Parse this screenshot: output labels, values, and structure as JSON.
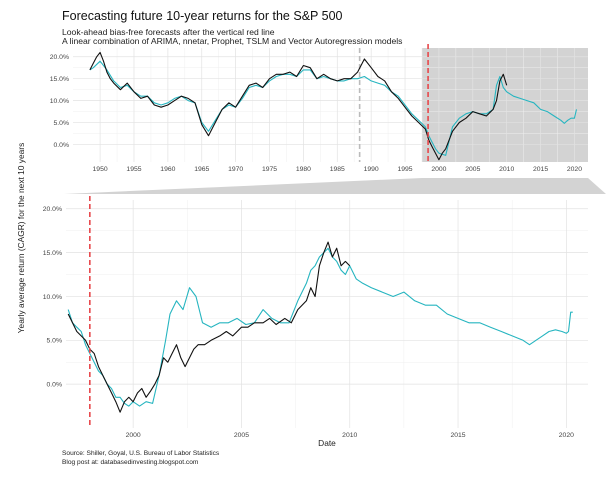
{
  "title": "Forecasting future 10-year returns for the S&P 500",
  "subtitle_1": "Look-ahead bias-free forecasts after the vertical red line",
  "subtitle_2": "A linear combination of ARIMA, nnetar, Prophet, TSLM and Vector Autoregression models",
  "caption_1": "Source: Shiller, Goyal, U.S. Bureau of Labor Statistics",
  "caption_2": "Blog post at: databasedinvesting.blogspot.com",
  "colors": {
    "actual": "#111111",
    "forecast": "#26b5c0",
    "redline": "#e8474b",
    "grayline": "#bbbbbb",
    "shade": "#d3d3d3"
  },
  "chart_data": [
    {
      "type": "line",
      "panel": "overview",
      "xlim": [
        1946,
        2022
      ],
      "ylim": [
        -4,
        22
      ],
      "y_ticks": [
        0,
        5,
        10,
        15,
        20
      ],
      "y_tick_labels": [
        "0.0%",
        "5.0%",
        "10.0%",
        "15.0%",
        "20.0%"
      ],
      "x_ticks": [
        1950,
        1955,
        1960,
        1965,
        1970,
        1975,
        1980,
        1985,
        1990,
        1995,
        2000,
        2005,
        2010,
        2015,
        2020
      ],
      "x_tick_labels": [
        "1950",
        "1955",
        "1960",
        "1965",
        "1970",
        "1975",
        "1980",
        "1985",
        "1990",
        "1995",
        "2000",
        "2005",
        "2010",
        "2015",
        "2020"
      ],
      "vline_gray_x": 1988.3,
      "vline_red_x": 1998.4,
      "shaded_x": [
        1997.5,
        2022
      ],
      "grid": true,
      "series": [
        {
          "role": "actual",
          "x": [
            1948.5,
            1949,
            1949.5,
            1950,
            1950.5,
            1951,
            1951.5,
            1952,
            1953,
            1954,
            1955,
            1956,
            1957,
            1958,
            1959,
            1960,
            1961,
            1962,
            1963,
            1964,
            1965,
            1966,
            1967,
            1968,
            1969,
            1970,
            1971,
            1972,
            1973,
            1974,
            1975,
            1976,
            1977,
            1978,
            1979,
            1980,
            1981,
            1982,
            1983,
            1984,
            1985,
            1986,
            1987,
            1988,
            1989,
            1990,
            1991,
            1992,
            1993,
            1994,
            1995,
            1996,
            1997,
            1998,
            1998.5,
            1999,
            1999.5,
            2000,
            2000.5,
            2001,
            2002,
            2003,
            2004,
            2005,
            2006,
            2007,
            2008,
            2008.5,
            2009,
            2009.5,
            2010
          ],
          "y": [
            17,
            18.5,
            20,
            21,
            19,
            16.5,
            15,
            14,
            12.5,
            14,
            12,
            10.5,
            11,
            9,
            8.5,
            9,
            10,
            11,
            10.5,
            9.5,
            4.5,
            2,
            5,
            8,
            9.5,
            8.5,
            11,
            13.5,
            14,
            13,
            15,
            16,
            16,
            16.5,
            15.5,
            18,
            17.5,
            15,
            16,
            15,
            14.5,
            15,
            15,
            16.5,
            19.5,
            17.5,
            15.5,
            14.5,
            12,
            10.5,
            8.5,
            6.5,
            5,
            3.5,
            1,
            -0.5,
            -2,
            -3.5,
            -2,
            -1,
            3,
            5,
            6,
            7.5,
            7,
            6.5,
            8,
            10,
            14.5,
            16,
            13.5
          ]
        },
        {
          "role": "forecast",
          "x": [
            1948.5,
            1949,
            1950,
            1951,
            1952,
            1953,
            1954,
            1955,
            1956,
            1957,
            1958,
            1959,
            1960,
            1961,
            1962,
            1963,
            1964,
            1965,
            1966,
            1967,
            1968,
            1969,
            1970,
            1971,
            1972,
            1973,
            1974,
            1975,
            1976,
            1977,
            1978,
            1979,
            1980,
            1981,
            1982,
            1983,
            1984,
            1985,
            1986,
            1987,
            1988,
            1989,
            1990,
            1991,
            1992,
            1993,
            1994,
            1995,
            1996,
            1997,
            1998,
            1998.5,
            1999,
            1999.5,
            2000,
            2001,
            2002,
            2003,
            2004,
            2005,
            2006,
            2007,
            2008,
            2008.5,
            2009,
            2009.5,
            2010,
            2011,
            2012,
            2013,
            2014,
            2015,
            2016,
            2017,
            2018,
            2018.5,
            2019,
            2019.5,
            2020,
            2020.3
          ],
          "y": [
            17,
            17.5,
            19,
            17,
            14.5,
            13,
            13.5,
            12,
            11,
            11,
            9.5,
            9,
            9.5,
            10.5,
            11,
            10,
            9.5,
            5,
            3,
            5.5,
            8,
            9,
            8.5,
            10.5,
            13,
            13.5,
            13,
            14.5,
            15.5,
            16,
            16,
            15.5,
            17,
            17,
            15,
            15.5,
            15,
            14.5,
            14.5,
            15,
            15,
            15.5,
            14.5,
            14,
            13.5,
            12,
            11,
            9,
            7,
            5.5,
            4,
            2,
            0.5,
            -1,
            -2,
            -2.5,
            4,
            6,
            7,
            7.5,
            7,
            7,
            8,
            13.5,
            15.5,
            13,
            12,
            11,
            10.5,
            10,
            9.5,
            8,
            7.5,
            6.5,
            5.5,
            4.8,
            5.5,
            6,
            6,
            8
          ]
        }
      ]
    },
    {
      "type": "line",
      "panel": "zoom",
      "xlim": [
        1996.9,
        2021
      ],
      "ylim": [
        -5,
        21
      ],
      "y_ticks": [
        0,
        5,
        10,
        15,
        20
      ],
      "y_tick_labels": [
        "0.0%",
        "5.0%",
        "10.0%",
        "15.0%",
        "20.0%"
      ],
      "x_ticks": [
        2000,
        2005,
        2010,
        2015,
        2020
      ],
      "x_tick_labels": [
        "2000",
        "2005",
        "2010",
        "2015",
        "2020"
      ],
      "xlabel": "Date",
      "ylabel": "Yearly average return (CAGR) for the next 10 years",
      "vline_red_x": 1998.0,
      "grid": true,
      "series": [
        {
          "role": "actual",
          "x": [
            1997.0,
            1997.2,
            1997.4,
            1997.6,
            1997.8,
            1998.0,
            1998.2,
            1998.4,
            1998.6,
            1998.8,
            1999.0,
            1999.2,
            1999.4,
            1999.6,
            1999.8,
            2000.0,
            2000.2,
            2000.4,
            2000.6,
            2000.8,
            2001.0,
            2001.2,
            2001.4,
            2001.6,
            2001.8,
            2002.0,
            2002.2,
            2002.4,
            2002.6,
            2002.8,
            2003.0,
            2003.3,
            2003.6,
            2004.0,
            2004.3,
            2004.6,
            2005.0,
            2005.3,
            2005.6,
            2006.0,
            2006.3,
            2006.6,
            2007.0,
            2007.3,
            2007.6,
            2008.0,
            2008.2,
            2008.4,
            2008.6,
            2008.8,
            2009.0,
            2009.2,
            2009.4,
            2009.6,
            2009.8,
            2010.0
          ],
          "y": [
            8,
            7,
            6,
            5.5,
            5,
            4,
            3.5,
            2,
            1,
            0,
            -1,
            -2,
            -3.2,
            -2,
            -1.5,
            -2,
            -1,
            -0.5,
            -1.5,
            -0.8,
            0,
            1,
            3,
            2.5,
            3.5,
            4.5,
            3,
            2,
            3,
            4,
            4.5,
            4.5,
            5,
            5.5,
            6,
            5.5,
            6.5,
            6.5,
            7,
            7,
            7.5,
            6.8,
            7.5,
            7,
            8.5,
            9.5,
            11,
            10,
            13.5,
            15,
            16.2,
            14.5,
            15.5,
            13.5,
            14,
            13.5
          ]
        },
        {
          "role": "forecast",
          "x": [
            1997.0,
            1997.2,
            1997.4,
            1997.6,
            1997.8,
            1998.0,
            1998.2,
            1998.4,
            1998.6,
            1998.8,
            1999.0,
            1999.2,
            1999.4,
            1999.6,
            1999.8,
            2000.0,
            2000.3,
            2000.6,
            2000.9,
            2001.2,
            2001.5,
            2001.7,
            2002.0,
            2002.3,
            2002.6,
            2002.9,
            2003.2,
            2003.6,
            2004.0,
            2004.4,
            2004.8,
            2005.2,
            2005.6,
            2006.0,
            2006.4,
            2006.8,
            2007.2,
            2007.6,
            2008.0,
            2008.2,
            2008.4,
            2008.6,
            2008.8,
            2009.0,
            2009.2,
            2009.4,
            2009.6,
            2009.8,
            2010.0,
            2010.3,
            2010.6,
            2011.0,
            2011.5,
            2012.0,
            2012.5,
            2013.0,
            2013.5,
            2014.0,
            2014.5,
            2015.0,
            2015.5,
            2016.0,
            2016.5,
            2017.0,
            2017.5,
            2018.0,
            2018.3,
            2018.6,
            2018.9,
            2019.2,
            2019.5,
            2019.8,
            2020.0,
            2020.1,
            2020.2,
            2020.3
          ],
          "y": [
            8.5,
            7,
            6.5,
            6,
            4.5,
            3.5,
            2.5,
            1.5,
            1,
            0,
            -0.5,
            -1.5,
            -1.5,
            -2.2,
            -2.5,
            -2,
            -2.5,
            -2,
            -2.2,
            1,
            5,
            8,
            9.5,
            8.5,
            11,
            10,
            7,
            6.5,
            7,
            7,
            7.5,
            6.8,
            7,
            8.5,
            7.5,
            7,
            7,
            9.5,
            11.5,
            13,
            13.5,
            14.5,
            15,
            15.5,
            14.5,
            14,
            13,
            12.5,
            13.5,
            12,
            11.5,
            11,
            10.5,
            10,
            10.5,
            9.5,
            9,
            9,
            8,
            7.5,
            7,
            7,
            6.5,
            6,
            5.5,
            5,
            4.5,
            5,
            5.5,
            6,
            6.2,
            6,
            5.8,
            6,
            8.2,
            8.2
          ]
        }
      ]
    }
  ]
}
